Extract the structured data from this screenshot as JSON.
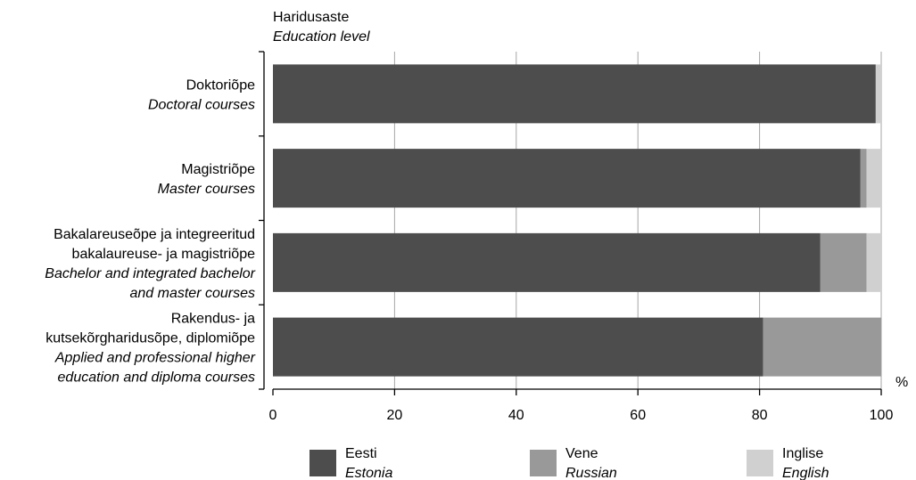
{
  "chart_data": {
    "type": "bar",
    "orientation": "horizontal",
    "stacked": true,
    "y_title": "Haridusaste",
    "y_title_en": "Education level",
    "x_unit": "%",
    "xlim": [
      0,
      100
    ],
    "x_ticks": [
      0,
      20,
      40,
      60,
      80,
      100
    ],
    "grid": "vertical",
    "legend_position": "bottom",
    "categories": [
      {
        "lines_et": [
          "Doktoriõpe"
        ],
        "lines_en": [
          "Doctoral courses"
        ]
      },
      {
        "lines_et": [
          "Magistriõpe"
        ],
        "lines_en": [
          "Master courses"
        ]
      },
      {
        "lines_et": [
          "Bakalareuseõpe ja integreeritud",
          "bakalaureuse- ja magistriõpe"
        ],
        "lines_en": [
          "Bachelor and integrated bachelor",
          "and master courses"
        ]
      },
      {
        "lines_et": [
          "Rakendus- ja",
          "kutsekõrgharidusõpe, diplomiõpe"
        ],
        "lines_en": [
          "Applied and professional higher",
          "education and diploma courses"
        ]
      }
    ],
    "series": [
      {
        "name": "Eesti",
        "name_en": "Estonia",
        "color": "#4d4d4d",
        "values": [
          99.1,
          96.6,
          90.0,
          80.6
        ]
      },
      {
        "name": "Vene",
        "name_en": "Russian",
        "color": "#999999",
        "values": [
          0,
          1.0,
          7.6,
          19.4
        ]
      },
      {
        "name": "Inglise",
        "name_en": "English",
        "color": "#d0d0d0",
        "values": [
          0.9,
          2.4,
          2.4,
          0
        ]
      }
    ]
  }
}
